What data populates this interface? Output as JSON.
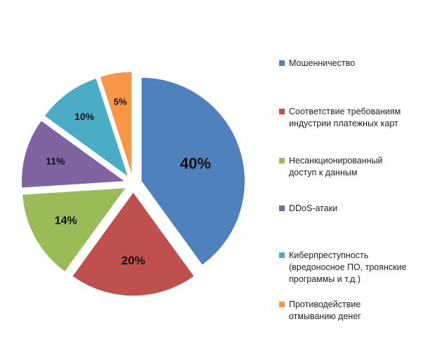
{
  "chart_data": {
    "type": "pie",
    "categories": [
      [
        "Мошенничество"
      ],
      [
        "Соответствие требованиям",
        "индустрии платежных карт"
      ],
      [
        "Несанкционированный",
        "доступ к данным"
      ],
      [
        "DDoS-атаки"
      ],
      [
        "Киберпреступность",
        "(вредоносное ПО, троянские",
        "программы и т.д.)"
      ],
      [
        "Противодействие",
        "отмыванию денег"
      ]
    ],
    "values": [
      40,
      20,
      14,
      11,
      10,
      5
    ],
    "data_labels": [
      "40%",
      "20%",
      "14%",
      "11%",
      "10%",
      "5%"
    ],
    "colors": [
      "#4F81BD",
      "#C0504D",
      "#9BBB59",
      "#8064A2",
      "#4BACC6",
      "#F79646"
    ],
    "exploded": true,
    "legend": "right"
  }
}
